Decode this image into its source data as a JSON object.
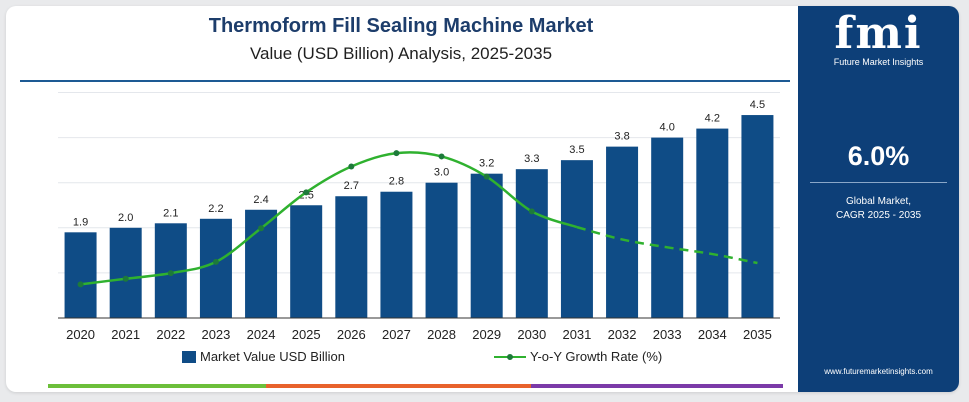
{
  "chart_data": {
    "type": "bar",
    "title": "Thermoform Fill Sealing Machine Market",
    "subtitle": "Value (USD Billion) Analysis, 2025-2035",
    "categories": [
      "2020",
      "2021",
      "2022",
      "2023",
      "2024",
      "2025",
      "2026",
      "2027",
      "2028",
      "2029",
      "2030",
      "2031",
      "2032",
      "2033",
      "2034",
      "2035"
    ],
    "series": [
      {
        "name": "Market Value USD Billion",
        "kind": "bar",
        "color": "#0f4c86",
        "values": [
          1.9,
          2.0,
          2.1,
          2.2,
          2.4,
          2.5,
          2.7,
          2.8,
          3.0,
          3.2,
          3.3,
          3.5,
          3.8,
          4.0,
          4.2,
          4.5
        ],
        "labels": [
          "1.9",
          "2.0",
          "2.1",
          "2.2",
          "2.4",
          "2.5",
          "2.7",
          "2.8",
          "3.0",
          "3.2",
          "3.3",
          "3.5",
          "3.8",
          "4.0",
          "4.2",
          "4.5"
        ]
      },
      {
        "name": "Y-o-Y Growth Rate (%)",
        "kind": "line",
        "color": "#2fb12f",
        "marker_color": "#1d7a3a",
        "values": [
          3.0,
          3.5,
          4.0,
          5.0,
          8.0,
          11.2,
          13.5,
          14.7,
          14.4,
          12.6,
          9.5,
          8.1,
          7.0,
          6.3,
          5.7,
          4.9
        ],
        "dashed_from_index": 11
      }
    ],
    "bar_ylim": [
      0,
      5.1
    ],
    "line_ylim": [
      0,
      20.5
    ],
    "grid": true,
    "legend": "bottom"
  },
  "brand": {
    "logo_text": "fmi",
    "tagline": "Future Market Insights",
    "cagr_value": "6.0%",
    "cagr_label_line1": "Global Market,",
    "cagr_label_line2": "CAGR 2025 - 2035",
    "website": "www.futuremarketinsights.com"
  },
  "colors": {
    "panel": "#0d3f78",
    "title": "#1d3d6b",
    "stripe": [
      "#6cbf3a",
      "#e8622c",
      "#7b3aa8"
    ]
  }
}
